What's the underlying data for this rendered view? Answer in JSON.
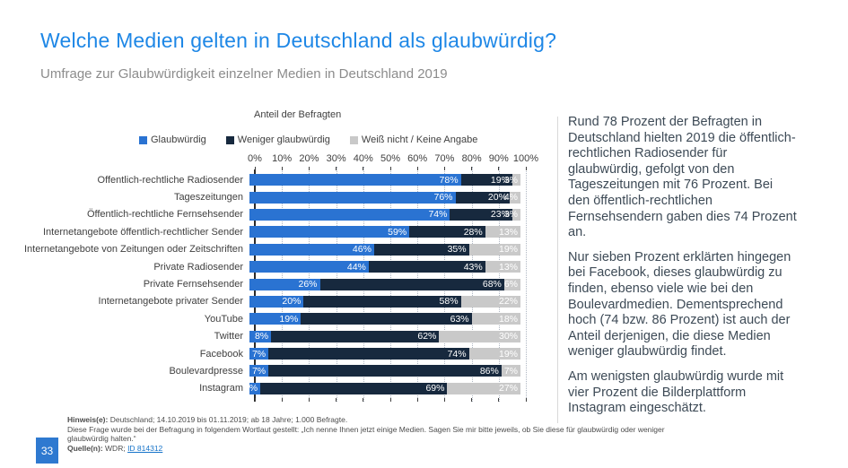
{
  "header": {
    "title": "Welche Medien gelten in Deutschland als glaubwürdig?",
    "subtitle": "Umfrage zur Glaubwürdigkeit einzelner Medien in Deutschland 2019"
  },
  "chart_data": {
    "type": "bar",
    "stacked": true,
    "orientation": "horizontal",
    "axis_title": "Anteil der Befragten",
    "xlim": [
      0,
      100
    ],
    "x_ticks": [
      "0%",
      "10%",
      "20%",
      "30%",
      "40%",
      "50%",
      "60%",
      "70%",
      "80%",
      "90%",
      "100%"
    ],
    "grid": "dotted-vertical",
    "legend_position": "top",
    "value_suffix": "%",
    "categories": [
      "Offentlich-rechtliche Radiosender",
      "Tageszeitungen",
      "Öffentlich-rechtliche Fernsehsender",
      "Internetangebote öffentlich-rechtlicher Sender",
      "Internetangebote von Zeitungen oder Zeitschriften",
      "Private Radiosender",
      "Private Fernsehsender",
      "Internetangebote privater Sender",
      "YouTube",
      "Twitter",
      "Facebook",
      "Boulevardpresse",
      "Instagram"
    ],
    "series": [
      {
        "name": "Glaubwürdig",
        "color": "#2a73d2",
        "values": [
          78,
          76,
          74,
          59,
          46,
          44,
          26,
          20,
          19,
          8,
          7,
          7,
          4
        ]
      },
      {
        "name": "Weniger glaubwürdig",
        "color": "#17293e",
        "values": [
          19,
          20,
          23,
          28,
          35,
          43,
          68,
          58,
          63,
          62,
          74,
          86,
          69
        ]
      },
      {
        "name": "Weiß nicht / Keine Angabe",
        "color": "#c9c9c9",
        "values": [
          3,
          4,
          3,
          13,
          19,
          13,
          6,
          22,
          18,
          30,
          19,
          7,
          27
        ]
      }
    ]
  },
  "commentary": {
    "p1": "Rund 78 Prozent der Befragten in Deutschland hielten 2019 die öffentlich-rechtlichen Radiosender für glaubwürdig, gefolgt von den Tageszeitungen mit 76 Prozent. Bei den öffentlich-rechtlichen Fernsehsendern gaben dies 74 Prozent an.",
    "p2": "Nur sieben Prozent erklärten hingegen bei Facebook, dieses glaubwürdig zu finden, ebenso viele wie bei den Boulevardmedien. Dementsprechend hoch (74 bzw. 86 Prozent) ist auch der Anteil derjenigen, die diese Medien weniger glaubwürdig findet.",
    "p3": "Am wenigsten glaubwürdig wurde mit vier Prozent die Bilderplattform Instagram eingeschätzt."
  },
  "footer": {
    "hinweis_label": "Hinweis(e):",
    "hinweis_text": "  Deutschland; 14.10.2019 bis 01.11.2019; ab 18 Jahre; 1.000 Befragte.",
    "frage_line1": "Diese Frage wurde bei der Befragung in folgendem Wortlaut gestellt: „Ich nenne Ihnen jetzt einige Medien. Sagen Sie mir bitte jeweils, ob Sie diese für glaubwürdig oder weniger",
    "frage_line2": "glaubwürdig halten.“",
    "quelle_label": "Quelle(n):",
    "quelle_text": " WDR; ",
    "quelle_link": "ID 814312",
    "page_number": "33"
  },
  "colors": {
    "title_blue": "#1e87e6",
    "bar_blue": "#2a73d2",
    "bar_navy": "#17293e",
    "bar_gray": "#c9c9c9",
    "link_blue": "#1673c9",
    "page_badge_blue": "#2e79d0"
  }
}
